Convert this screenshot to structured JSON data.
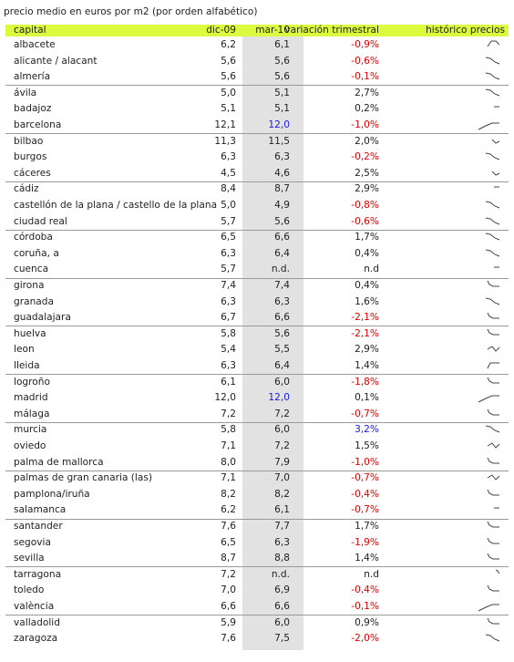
{
  "caption": "precio medio en euros por m2 (por orden alfabético)",
  "columns": {
    "capital": "capital",
    "dic09": "dic-09",
    "mar10": "mar-10",
    "variation": "variación trimestral",
    "history": "histórico precios"
  },
  "colors": {
    "header_bg": "#dcfa3e",
    "shade_bg": "#e2e2e2",
    "negative": "#e00000",
    "highlight": "#1a1adc",
    "text": "#222222"
  },
  "rows": [
    {
      "name": "albacete",
      "dic09": "6,2",
      "mar10": "6,1",
      "variation": "-0,9%",
      "var_color": "neg",
      "spark": "A"
    },
    {
      "name": "alicante / alacant",
      "dic09": "5,6",
      "mar10": "5,6",
      "variation": "-0,6%",
      "var_color": "neg",
      "spark": "D"
    },
    {
      "name": "almería",
      "dic09": "5,6",
      "mar10": "5,6",
      "variation": "-0,1%",
      "var_color": "neg",
      "spark": "D"
    },
    {
      "name": "ávila",
      "dic09": "5,0",
      "mar10": "5,1",
      "variation": "2,7%",
      "var_color": "pos",
      "spark": "D"
    },
    {
      "name": "badajoz",
      "dic09": "5,1",
      "mar10": "5,1",
      "variation": "0,2%",
      "var_color": "pos",
      "spark": "E"
    },
    {
      "name": "barcelona",
      "dic09": "12,1",
      "mar10": "12,0",
      "variation": "-1,0%",
      "var_color": "neg",
      "spark": "L",
      "mar10_color": "highlight"
    },
    {
      "name": "bilbao",
      "dic09": "11,3",
      "mar10": "11,5",
      "variation": "2,0%",
      "var_color": "pos",
      "spark": "V"
    },
    {
      "name": "burgos",
      "dic09": "6,3",
      "mar10": "6,3",
      "variation": "-0,2%",
      "var_color": "neg",
      "spark": "D"
    },
    {
      "name": "cáceres",
      "dic09": "4,5",
      "mar10": "4,6",
      "variation": "2,5%",
      "var_color": "pos",
      "spark": "V"
    },
    {
      "name": "cádiz",
      "dic09": "8,4",
      "mar10": "8,7",
      "variation": "2,9%",
      "var_color": "pos",
      "spark": "F"
    },
    {
      "name": "castellón de la plana / castello de la plana",
      "dic09": "5,0",
      "mar10": "4,9",
      "variation": "-0,8%",
      "var_color": "neg",
      "spark": "D"
    },
    {
      "name": "ciudad real",
      "dic09": "5,7",
      "mar10": "5,6",
      "variation": "-0,6%",
      "var_color": "neg",
      "spark": "D"
    },
    {
      "name": "córdoba",
      "dic09": "6,5",
      "mar10": "6,6",
      "variation": "1,7%",
      "var_color": "pos",
      "spark": "D"
    },
    {
      "name": "coruña, a",
      "dic09": "6,3",
      "mar10": "6,4",
      "variation": "0,4%",
      "var_color": "pos",
      "spark": "D"
    },
    {
      "name": "cuenca",
      "dic09": "5,7",
      "mar10": "n.d.",
      "variation": "n.d",
      "var_color": "pos",
      "spark": "F"
    },
    {
      "name": "girona",
      "dic09": "7,4",
      "mar10": "7,4",
      "variation": "0,4%",
      "var_color": "pos",
      "spark": "S"
    },
    {
      "name": "granada",
      "dic09": "6,3",
      "mar10": "6,3",
      "variation": "1,6%",
      "var_color": "pos",
      "spark": "D"
    },
    {
      "name": "guadalajara",
      "dic09": "6,7",
      "mar10": "6,6",
      "variation": "-2,1%",
      "var_color": "neg",
      "spark": "S"
    },
    {
      "name": "huelva",
      "dic09": "5,8",
      "mar10": "5,6",
      "variation": "-2,1%",
      "var_color": "neg",
      "spark": "S"
    },
    {
      "name": "leon",
      "dic09": "5,4",
      "mar10": "5,5",
      "variation": "2,9%",
      "var_color": "pos",
      "spark": "W"
    },
    {
      "name": "lleida",
      "dic09": "6,3",
      "mar10": "6,4",
      "variation": "1,4%",
      "var_color": "pos",
      "spark": "U"
    },
    {
      "name": "logroño",
      "dic09": "6,1",
      "mar10": "6,0",
      "variation": "-1,8%",
      "var_color": "neg",
      "spark": "S"
    },
    {
      "name": "madrid",
      "dic09": "12,0",
      "mar10": "12,0",
      "variation": "0,1%",
      "var_color": "pos",
      "spark": "L",
      "mar10_color": "highlight"
    },
    {
      "name": "málaga",
      "dic09": "7,2",
      "mar10": "7,2",
      "variation": "-0,7%",
      "var_color": "neg",
      "spark": "S"
    },
    {
      "name": "murcia",
      "dic09": "5,8",
      "mar10": "6,0",
      "variation": "3,2%",
      "var_color": "highlight",
      "spark": "D"
    },
    {
      "name": "oviedo",
      "dic09": "7,1",
      "mar10": "7,2",
      "variation": "1,5%",
      "var_color": "pos",
      "spark": "W"
    },
    {
      "name": "palma de mallorca",
      "dic09": "8,0",
      "mar10": "7,9",
      "variation": "-1,0%",
      "var_color": "neg",
      "spark": "S"
    },
    {
      "name": "palmas de gran canaria (las)",
      "dic09": "7,1",
      "mar10": "7,0",
      "variation": "-0,7%",
      "var_color": "neg",
      "spark": "W"
    },
    {
      "name": "pamplona/iruña",
      "dic09": "8,2",
      "mar10": "8,2",
      "variation": "-0,4%",
      "var_color": "neg",
      "spark": "S"
    },
    {
      "name": "salamanca",
      "dic09": "6,2",
      "mar10": "6,1",
      "variation": "-0,7%",
      "var_color": "neg",
      "spark": "F"
    },
    {
      "name": "santander",
      "dic09": "7,6",
      "mar10": "7,7",
      "variation": "1,7%",
      "var_color": "pos",
      "spark": "S"
    },
    {
      "name": "segovia",
      "dic09": "6,5",
      "mar10": "6,3",
      "variation": "-1,9%",
      "var_color": "neg",
      "spark": "S"
    },
    {
      "name": "sevilla",
      "dic09": "8,7",
      "mar10": "8,8",
      "variation": "1,4%",
      "var_color": "pos",
      "spark": "S"
    },
    {
      "name": "tarragona",
      "dic09": "7,2",
      "mar10": "n.d.",
      "variation": "n.d",
      "var_color": "pos",
      "spark": "T"
    },
    {
      "name": "toledo",
      "dic09": "7,0",
      "mar10": "6,9",
      "variation": "-0,4%",
      "var_color": "neg",
      "spark": "S"
    },
    {
      "name": "valència",
      "dic09": "6,6",
      "mar10": "6,6",
      "variation": "-0,1%",
      "var_color": "neg",
      "spark": "L"
    },
    {
      "name": "valladolid",
      "dic09": "5,9",
      "mar10": "6,0",
      "variation": "0,9%",
      "var_color": "pos",
      "spark": "S"
    },
    {
      "name": "zaragoza",
      "dic09": "7,6",
      "mar10": "7,5",
      "variation": "-2,0%",
      "var_color": "neg",
      "spark": "D"
    }
  ]
}
